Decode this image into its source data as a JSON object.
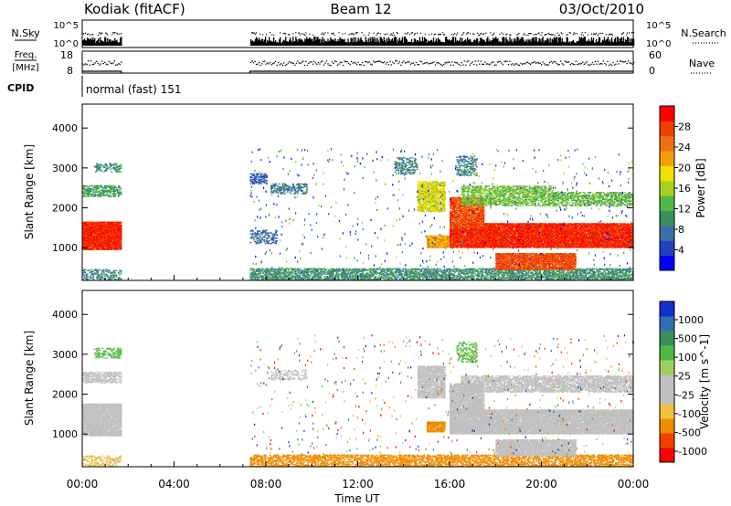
{
  "header": {
    "station": "Kodiak (fitACF)",
    "beam": "Beam 12",
    "date": "03/Oct/2010"
  },
  "sky_panel": {
    "left_label": "N.Sky",
    "right_label": "N.Search",
    "left_ticks": [
      "10^5",
      "10^0"
    ],
    "right_ticks": [
      "10^5",
      "10^0"
    ]
  },
  "freq_panel": {
    "left_label_1": "Freq.",
    "left_label_2": "[MHz]",
    "right_label": "Nave",
    "left_ticks": [
      "18",
      "8"
    ],
    "right_ticks": [
      "60",
      "0"
    ]
  },
  "cpid": {
    "label": "CPID",
    "value": "normal (fast) 151"
  },
  "x_axis": {
    "ticks": [
      "00:00",
      "04:00",
      "08:00",
      "12:00",
      "16:00",
      "20:00",
      "00:00"
    ],
    "label": "Time UT"
  },
  "colors": {
    "power": [
      "#0000ff",
      "#2040c0",
      "#3a6fa8",
      "#3a8f5a",
      "#50b848",
      "#a8d020",
      "#f0e000",
      "#f0a000",
      "#f07010",
      "#f04000",
      "#ff0000"
    ],
    "velocity": [
      "#ff0000",
      "#f04000",
      "#f08c00",
      "#f0c040",
      "#c0c0c0",
      "#c0c0c0",
      "#9ad060",
      "#50b848",
      "#3a8f5a",
      "#2f6fb0",
      "#1030d0"
    ],
    "ground_scatter": "#c0c0c0"
  },
  "chart_data": [
    {
      "type": "heatmap",
      "title": "",
      "xlabel": "",
      "ylabel": "Slant Range [km]",
      "xlim": [
        0,
        24
      ],
      "ylim": [
        180,
        4600
      ],
      "yticks": [
        "1000",
        "2000",
        "3000",
        "4000"
      ],
      "colorbar": {
        "label": "Power [dB]",
        "range": [
          0,
          32
        ],
        "ticks": [
          "4",
          "8",
          "12",
          "16",
          "20",
          "24",
          "28"
        ]
      },
      "regions": [
        {
          "t": [
            0.0,
            1.7
          ],
          "r": [
            950,
            1650
          ],
          "value": 29,
          "density": 0.95
        },
        {
          "t": [
            0.0,
            1.7
          ],
          "r": [
            2280,
            2560
          ],
          "value": 11,
          "density": 0.55
        },
        {
          "t": [
            0.5,
            1.7
          ],
          "r": [
            2900,
            3120
          ],
          "value": 10,
          "density": 0.35
        },
        {
          "t": [
            0.0,
            1.7
          ],
          "r": [
            200,
            450
          ],
          "value": 9,
          "density": 0.35
        },
        {
          "t": [
            8.2,
            9.8
          ],
          "r": [
            2350,
            2600
          ],
          "value": 8,
          "density": 0.35
        },
        {
          "t": [
            7.3,
            8.0
          ],
          "r": [
            2600,
            2850
          ],
          "value": 6,
          "density": 0.45
        },
        {
          "t": [
            7.3,
            8.5
          ],
          "r": [
            1100,
            1450
          ],
          "value": 7,
          "density": 0.35
        },
        {
          "t": [
            7.3,
            24.0
          ],
          "r": [
            180,
            480
          ],
          "value": 10,
          "density": 0.55
        },
        {
          "t": [
            13.6,
            14.6
          ],
          "r": [
            2850,
            3250
          ],
          "value": 9,
          "density": 0.4
        },
        {
          "t": [
            14.6,
            15.8
          ],
          "r": [
            1900,
            2650
          ],
          "value": 18,
          "density": 0.7
        },
        {
          "t": [
            15.0,
            16.0
          ],
          "r": [
            1000,
            1300
          ],
          "value": 22,
          "density": 0.85
        },
        {
          "t": [
            16.0,
            24.0
          ],
          "r": [
            1000,
            1600
          ],
          "value": 29,
          "density": 0.92
        },
        {
          "t": [
            16.0,
            17.5
          ],
          "r": [
            1500,
            2250
          ],
          "value": 27,
          "density": 0.8
        },
        {
          "t": [
            16.5,
            20.5
          ],
          "r": [
            2050,
            2550
          ],
          "value": 14,
          "density": 0.5
        },
        {
          "t": [
            20.5,
            24.0
          ],
          "r": [
            2050,
            2400
          ],
          "value": 13,
          "density": 0.5
        },
        {
          "t": [
            18.0,
            21.5
          ],
          "r": [
            450,
            850
          ],
          "value": 27,
          "density": 0.85
        },
        {
          "t": [
            16.3,
            17.2
          ],
          "r": [
            2800,
            3300
          ],
          "value": 9,
          "density": 0.35
        }
      ]
    },
    {
      "type": "heatmap",
      "title": "",
      "xlabel": "Time UT",
      "ylabel": "Slant Range [km]",
      "xlim": [
        0,
        24
      ],
      "ylim": [
        180,
        4600
      ],
      "yticks": [
        "1000",
        "2000",
        "3000",
        "4000"
      ],
      "colorbar": {
        "label": "Velocity [m s^-1]",
        "range": [
          -1250,
          1250
        ],
        "ticks": [
          "1000",
          "500",
          "100",
          "25",
          "-25",
          "-100",
          "-500",
          "-1000"
        ]
      },
      "regions": [
        {
          "t": [
            0.0,
            1.7
          ],
          "r": [
            950,
            1750
          ],
          "value": 0,
          "density": 0.9
        },
        {
          "t": [
            0.0,
            1.7
          ],
          "r": [
            2280,
            2560
          ],
          "value": 0,
          "density": 0.5
        },
        {
          "t": [
            0.5,
            1.7
          ],
          "r": [
            2900,
            3150
          ],
          "value": 120,
          "density": 0.35
        },
        {
          "t": [
            0.0,
            1.7
          ],
          "r": [
            200,
            450
          ],
          "value": -60,
          "density": 0.3
        },
        {
          "t": [
            7.3,
            24.0
          ],
          "r": [
            180,
            480
          ],
          "value": -150,
          "density": 0.5
        },
        {
          "t": [
            8.2,
            9.8
          ],
          "r": [
            2350,
            2600
          ],
          "value": 0,
          "density": 0.3
        },
        {
          "t": [
            14.6,
            15.8
          ],
          "r": [
            1900,
            2700
          ],
          "value": 0,
          "density": 0.75
        },
        {
          "t": [
            15.0,
            15.8
          ],
          "r": [
            1050,
            1300
          ],
          "value": -300,
          "density": 0.8
        },
        {
          "t": [
            16.0,
            24.0
          ],
          "r": [
            1000,
            1600
          ],
          "value": 0,
          "density": 0.9
        },
        {
          "t": [
            16.0,
            17.5
          ],
          "r": [
            1500,
            2250
          ],
          "value": 0,
          "density": 0.8
        },
        {
          "t": [
            16.5,
            24.0
          ],
          "r": [
            2050,
            2450
          ],
          "value": 0,
          "density": 0.6
        },
        {
          "t": [
            18.0,
            21.5
          ],
          "r": [
            450,
            850
          ],
          "value": 0,
          "density": 0.85
        },
        {
          "t": [
            16.3,
            17.2
          ],
          "r": [
            2800,
            3300
          ],
          "value": 120,
          "density": 0.35
        }
      ]
    }
  ]
}
